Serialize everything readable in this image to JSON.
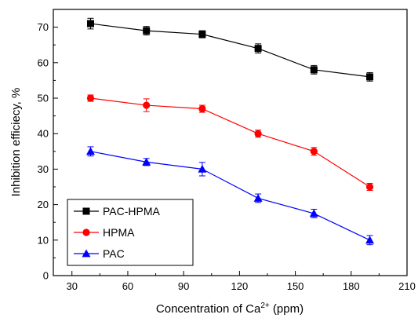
{
  "chart_data": {
    "type": "line",
    "xlabel": "Concentration of Ca",
    "xlabel_sup": "2+",
    "xlabel_suffix": " (ppm)",
    "ylabel": "Inhibition efficiecy, %",
    "xlim": [
      20,
      210
    ],
    "ylim": [
      0,
      75
    ],
    "x_ticks": [
      30,
      60,
      90,
      120,
      150,
      180,
      210
    ],
    "y_ticks": [
      0,
      10,
      20,
      30,
      40,
      50,
      60,
      70
    ],
    "x": [
      40,
      70,
      100,
      130,
      160,
      190
    ],
    "legend_position": "bottom-left",
    "grid": false,
    "series": [
      {
        "name": "PAC-HPMA",
        "color": "#000000",
        "marker": "square",
        "values": [
          71,
          69,
          68,
          64,
          58,
          56
        ],
        "errors": [
          1.5,
          1.2,
          1.0,
          1.3,
          1.2,
          1.2
        ]
      },
      {
        "name": "HPMA",
        "color": "#ff0000",
        "marker": "circle",
        "values": [
          50,
          48,
          47,
          40,
          35,
          25
        ],
        "errors": [
          0.9,
          1.8,
          1.0,
          1.0,
          1.1,
          1.0
        ]
      },
      {
        "name": "PAC",
        "color": "#0000ff",
        "marker": "triangle",
        "values": [
          35,
          32,
          30,
          21.8,
          17.5,
          10
        ],
        "errors": [
          1.3,
          1.0,
          1.9,
          1.2,
          1.2,
          1.3
        ]
      }
    ]
  }
}
